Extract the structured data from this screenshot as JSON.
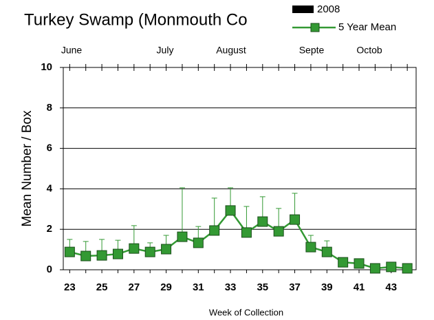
{
  "chart_data": {
    "type": "line",
    "title": "Turkey Swamp (Monmouth Co",
    "xlabel": "Week of Collection",
    "ylabel": "Mean Number / Box",
    "month_labels": [
      "June",
      "July",
      "August",
      "Septe",
      "Octob"
    ],
    "x": [
      23,
      24,
      25,
      26,
      27,
      28,
      29,
      30,
      31,
      32,
      33,
      34,
      35,
      36,
      37,
      38,
      39,
      40,
      41,
      42,
      43,
      44
    ],
    "series": [
      {
        "name": "2008",
        "color": "#000000",
        "values": [
          null,
          null,
          null,
          null,
          null,
          null,
          null,
          null,
          null,
          null,
          null,
          null,
          null,
          null,
          null,
          null,
          null,
          null,
          null,
          null,
          null,
          null
        ]
      },
      {
        "name": "5 Year Mean",
        "color": "#339933",
        "values": [
          0.88,
          0.68,
          0.71,
          0.78,
          1.05,
          0.88,
          1.02,
          1.63,
          1.33,
          1.94,
          2.93,
          1.84,
          2.38,
          1.9,
          2.48,
          1.12,
          0.88,
          0.37,
          0.31,
          0.07,
          0.14,
          0.07
        ],
        "errors": [
          0.62,
          0.72,
          0.79,
          0.68,
          1.13,
          0.45,
          0.68,
          2.42,
          0.81,
          1.6,
          1.12,
          1.29,
          1.23,
          1.13,
          1.3,
          0.58,
          0.55,
          null,
          null,
          null,
          null,
          null
        ]
      }
    ],
    "xlim": [
      22.6,
      44.55
    ],
    "xticks": [
      23,
      25,
      27,
      29,
      31,
      33,
      35,
      37,
      39,
      41,
      43
    ],
    "ylim": [
      0,
      10
    ],
    "yticks": [
      0,
      2,
      4,
      6,
      8,
      10
    ],
    "grid": true
  }
}
